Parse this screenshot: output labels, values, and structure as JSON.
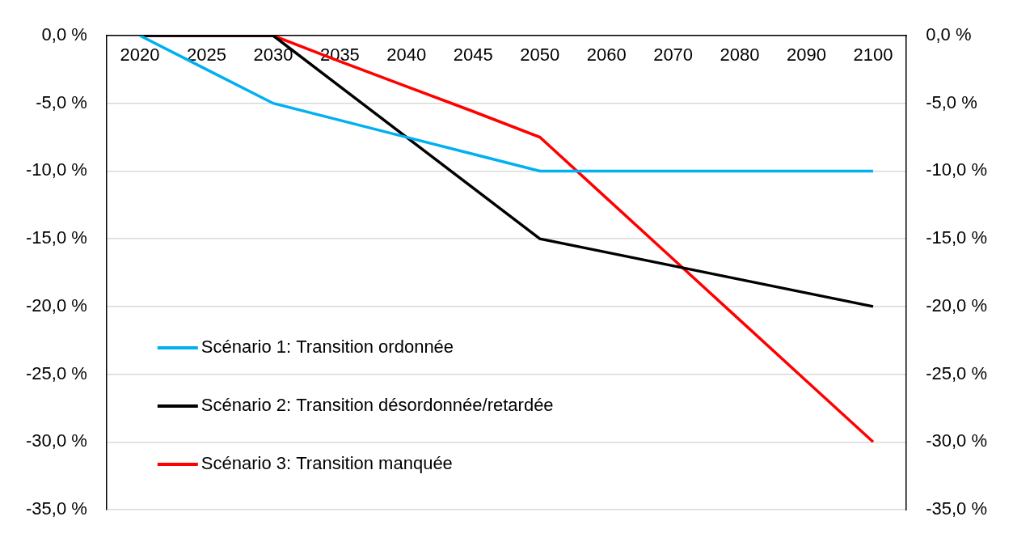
{
  "chart_data": {
    "type": "line",
    "categories": [
      "2020",
      "2025",
      "2030",
      "2035",
      "2040",
      "2045",
      "2050",
      "2060",
      "2070",
      "2080",
      "2090",
      "2100"
    ],
    "series": [
      {
        "name": "Scénario 1: Transition ordonnée",
        "color": "#00b0f0",
        "values": [
          0,
          -2.5,
          -5,
          -6.25,
          -7.5,
          -8.75,
          -10,
          -10,
          -10,
          -10,
          -10,
          -10
        ]
      },
      {
        "name": "Scénario 2: Transition désordonnée/retardée",
        "color": "#000000",
        "values": [
          0,
          0,
          0,
          -3.75,
          -7.5,
          -11.25,
          -15,
          -16,
          -17,
          -18,
          -19,
          -20
        ]
      },
      {
        "name": "Scénario 3: Transition manquée",
        "color": "#ff0000",
        "values": [
          0,
          0,
          0,
          -1.9,
          -3.75,
          -5.6,
          -7.5,
          -12,
          -16.5,
          -21,
          -25.5,
          -30
        ]
      }
    ],
    "ylim": [
      -35,
      0
    ],
    "yticks": [
      {
        "value": -35,
        "label": "-35,0 %"
      },
      {
        "value": -30,
        "label": "-30,0 %"
      },
      {
        "value": -25,
        "label": "-25,0 %"
      },
      {
        "value": -20,
        "label": "-20,0 %"
      },
      {
        "value": -15,
        "label": "-15,0 %"
      },
      {
        "value": -10,
        "label": "-10,0 %"
      },
      {
        "value": -5,
        "label": "-5,0 %"
      },
      {
        "value": 0,
        "label": "0,0 %"
      }
    ],
    "y2lim": [
      -35,
      0
    ],
    "y2ticks": [
      {
        "value": -35,
        "label": "-35,0 %"
      },
      {
        "value": -30,
        "label": "-30,0 %"
      },
      {
        "value": -25,
        "label": "-25,0 %"
      },
      {
        "value": -20,
        "label": "-20,0 %"
      },
      {
        "value": -15,
        "label": "-15,0 %"
      },
      {
        "value": -10,
        "label": "-10,0 %"
      },
      {
        "value": -5,
        "label": "-5,0 %"
      },
      {
        "value": 0,
        "label": "0,0 %"
      }
    ],
    "grid": true,
    "legend": "lower left"
  }
}
